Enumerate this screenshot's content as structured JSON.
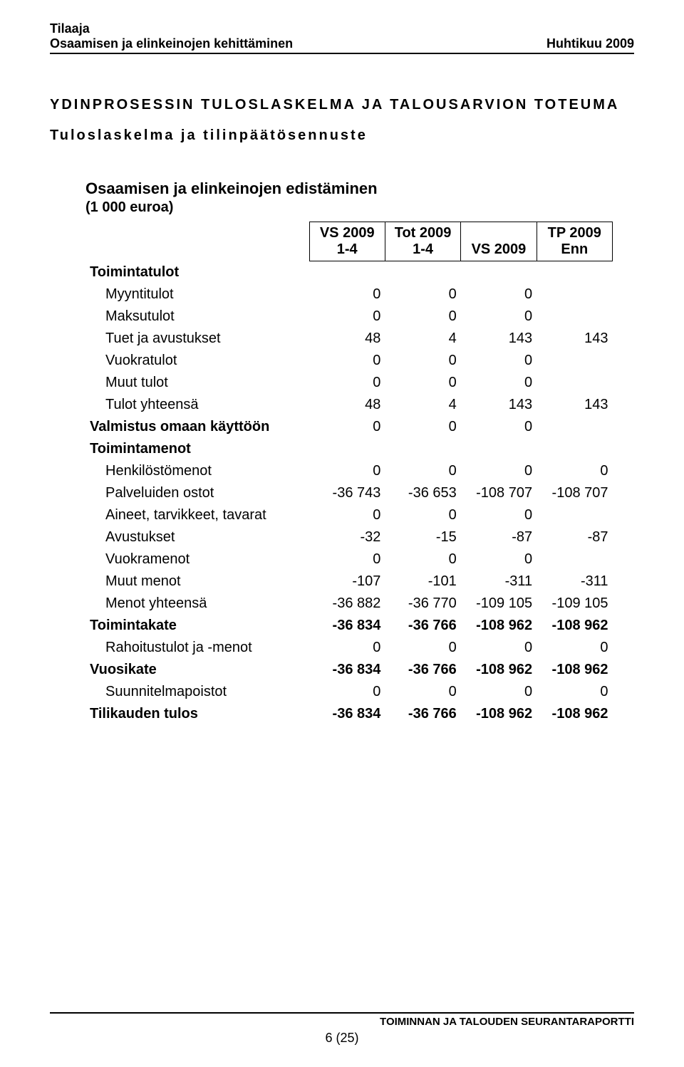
{
  "header": {
    "tilaaja": "Tilaaja",
    "dept": "Osaamisen ja elinkeinojen kehittäminen",
    "period": "Huhtikuu 2009"
  },
  "title": "YDINPROSESSIN TULOSLASKELMA JA TALOUSARVION TOTEUMA",
  "subtitle": "Tuloslaskelma ja tilinpäätösennuste",
  "section": {
    "title": "Osaamisen ja elinkeinojen edistäminen",
    "unit": "(1 000 euroa)"
  },
  "columns": {
    "c1a": "VS 2009",
    "c1b": "1-4",
    "c2a": "Tot 2009",
    "c2b": "1-4",
    "c3": "VS 2009",
    "c4a": "TP 2009",
    "c4b": "Enn"
  },
  "rows": {
    "toimintatulot": "Toimintatulot",
    "myyntitulot": {
      "label": "Myyntitulot",
      "v": [
        "0",
        "0",
        "0",
        ""
      ]
    },
    "maksutulot": {
      "label": "Maksutulot",
      "v": [
        "0",
        "0",
        "0",
        ""
      ]
    },
    "tuet": {
      "label": "Tuet ja avustukset",
      "v": [
        "48",
        "4",
        "143",
        "143"
      ]
    },
    "vuokratulot": {
      "label": "Vuokratulot",
      "v": [
        "0",
        "0",
        "0",
        ""
      ]
    },
    "muuttulot": {
      "label": "Muut tulot",
      "v": [
        "0",
        "0",
        "0",
        ""
      ]
    },
    "tulotyht": {
      "label": "Tulot yhteensä",
      "v": [
        "48",
        "4",
        "143",
        "143"
      ]
    },
    "valmistus": {
      "label": "Valmistus omaan käyttöön",
      "v": [
        "0",
        "0",
        "0",
        ""
      ]
    },
    "toimintamenot": "Toimintamenot",
    "henkilosto": {
      "label": "Henkilöstömenot",
      "v": [
        "0",
        "0",
        "0",
        "0"
      ]
    },
    "palveluiden": {
      "label": "Palveluiden ostot",
      "v": [
        "-36 743",
        "-36 653",
        "-108 707",
        "-108 707"
      ]
    },
    "aineet": {
      "label": "Aineet, tarvikkeet, tavarat",
      "v": [
        "0",
        "0",
        "0",
        ""
      ]
    },
    "avustukset": {
      "label": "Avustukset",
      "v": [
        "-32",
        "-15",
        "-87",
        "-87"
      ]
    },
    "vuokramenot": {
      "label": "Vuokramenot",
      "v": [
        "0",
        "0",
        "0",
        ""
      ]
    },
    "muutmenot": {
      "label": "Muut menot",
      "v": [
        "-107",
        "-101",
        "-311",
        "-311"
      ]
    },
    "menotyht": {
      "label": "Menot yhteensä",
      "v": [
        "-36 882",
        "-36 770",
        "-109 105",
        "-109 105"
      ]
    },
    "toimintakate": {
      "label": "Toimintakate",
      "v": [
        "-36 834",
        "-36 766",
        "-108 962",
        "-108 962"
      ]
    },
    "rahoitus": {
      "label": "Rahoitustulot ja -menot",
      "v": [
        "0",
        "0",
        "0",
        "0"
      ]
    },
    "vuosikate": {
      "label": "Vuosikate",
      "v": [
        "-36 834",
        "-36 766",
        "-108 962",
        "-108 962"
      ]
    },
    "suunnitelma": {
      "label": "Suunnitelmapoistot",
      "v": [
        "0",
        "0",
        "0",
        "0"
      ]
    },
    "tilikauden": {
      "label": "Tilikauden tulos",
      "v": [
        "-36 834",
        "-36 766",
        "-108 962",
        "-108 962"
      ]
    }
  },
  "footer": {
    "report": "TOIMINNAN JA TALOUDEN SEURANTARAPORTTI",
    "page": "6 (25)"
  }
}
